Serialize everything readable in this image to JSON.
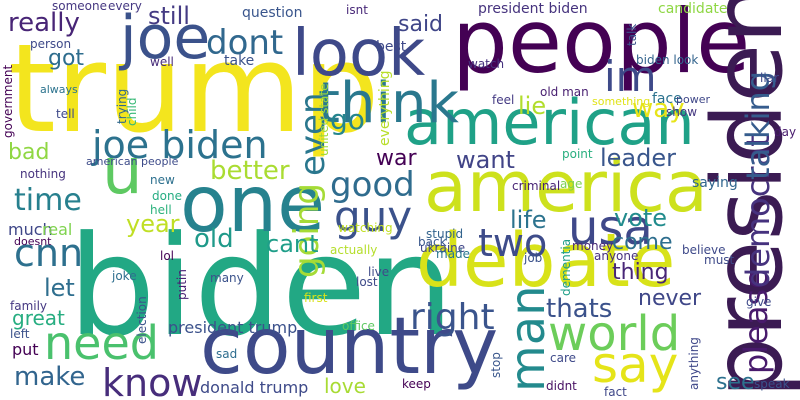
{
  "background_color": "#ffffff",
  "words": [
    {
      "text": "trump",
      "color": "#f3e51e"
    },
    {
      "text": "biden",
      "color": "#22a884"
    },
    {
      "text": "people",
      "color": "#440154"
    },
    {
      "text": "president",
      "color": "#3b1b53"
    },
    {
      "text": "country",
      "color": "#3e4a89"
    },
    {
      "text": "america",
      "color": "#cde11d"
    },
    {
      "text": "american",
      "color": "#1fa187"
    },
    {
      "text": "debate",
      "color": "#d8e219"
    },
    {
      "text": "one",
      "color": "#26828e"
    },
    {
      "text": "joe",
      "color": "#3b528b"
    },
    {
      "text": "look",
      "color": "#3e4989"
    },
    {
      "text": "think",
      "color": "#2a788e"
    },
    {
      "text": "im",
      "color": "#3e4a89"
    },
    {
      "text": "joe biden",
      "color": "#2c728e"
    },
    {
      "text": "u",
      "color": "#5ec962"
    },
    {
      "text": "dont",
      "color": "#31688e"
    },
    {
      "text": "guy",
      "color": "#3b528b"
    },
    {
      "text": "usa",
      "color": "#3f4889"
    },
    {
      "text": "world",
      "color": "#6ccd5a"
    },
    {
      "text": "need",
      "color": "#4ac16d"
    },
    {
      "text": "say",
      "color": "#e5e419"
    },
    {
      "text": "man",
      "color": "#238a8d"
    },
    {
      "text": "know",
      "color": "#472d7b"
    },
    {
      "text": "cnn",
      "color": "#2d708e"
    },
    {
      "text": "good",
      "color": "#2f6c8e"
    },
    {
      "text": "time",
      "color": "#27808e"
    },
    {
      "text": "right",
      "color": "#3a548c"
    },
    {
      "text": "two",
      "color": "#3e4c8a"
    },
    {
      "text": "please",
      "color": "#481a6c"
    },
    {
      "text": "democrat",
      "color": "#46327e"
    },
    {
      "text": "talking",
      "color": "#365c8d"
    },
    {
      "text": "going",
      "color": "#a5db36"
    },
    {
      "text": "better",
      "color": "#aadc32"
    },
    {
      "text": "even",
      "color": "#2a778e"
    },
    {
      "text": "still",
      "color": "#443a83"
    },
    {
      "text": "go",
      "color": "#25858e"
    },
    {
      "text": "really",
      "color": "#482576"
    },
    {
      "text": "got",
      "color": "#2e6d8e"
    },
    {
      "text": "year",
      "color": "#c0df25"
    },
    {
      "text": "want",
      "color": "#414487"
    },
    {
      "text": "war",
      "color": "#440154"
    },
    {
      "text": "leader",
      "color": "#39568c"
    },
    {
      "text": "lie",
      "color": "#b2dd2d"
    },
    {
      "text": "way",
      "color": "#e7e419"
    },
    {
      "text": "said",
      "color": "#404688"
    },
    {
      "text": "vote",
      "color": "#228c8d"
    },
    {
      "text": "come",
      "color": "#2e6e8e"
    },
    {
      "text": "thing",
      "color": "#482677"
    },
    {
      "text": "never",
      "color": "#3f4788"
    },
    {
      "text": "life",
      "color": "#2c738e"
    },
    {
      "text": "thats",
      "color": "#3b528b"
    },
    {
      "text": "old",
      "color": "#1f9a8a"
    },
    {
      "text": "cant",
      "color": "#1f9e89"
    },
    {
      "text": "let",
      "color": "#2e6e8e"
    },
    {
      "text": "make",
      "color": "#32658e"
    },
    {
      "text": "love",
      "color": "#a8db34"
    },
    {
      "text": "see",
      "color": "#2c718e"
    },
    {
      "text": "bad",
      "color": "#90d743"
    },
    {
      "text": "president trump",
      "color": "#3b518b"
    },
    {
      "text": "donald trump",
      "color": "#3e4a89"
    },
    {
      "text": "great",
      "color": "#27ad81"
    },
    {
      "text": "put",
      "color": "#440154"
    },
    {
      "text": "much",
      "color": "#3f4788"
    },
    {
      "text": "real",
      "color": "#7fd34e"
    },
    {
      "text": "president biden",
      "color": "#46337e"
    },
    {
      "text": "candidate",
      "color": "#8fd744"
    },
    {
      "text": "question",
      "color": "#39558c"
    },
    {
      "text": "someone",
      "color": "#453781"
    },
    {
      "text": "every",
      "color": "#453882"
    },
    {
      "text": "isnt",
      "color": "#482878"
    },
    {
      "text": "best",
      "color": "#3e4989"
    },
    {
      "text": "watch",
      "color": "#46327e"
    },
    {
      "text": "take",
      "color": "#3b528b"
    },
    {
      "text": "well",
      "color": "#472c7a"
    },
    {
      "text": "person",
      "color": "#3e4989"
    },
    {
      "text": "feel",
      "color": "#443a83"
    },
    {
      "text": "old man",
      "color": "#481f70"
    },
    {
      "text": "biden look",
      "color": "#33638d"
    },
    {
      "text": "face",
      "color": "#2c728e"
    },
    {
      "text": "power",
      "color": "#3f4788"
    },
    {
      "text": "show",
      "color": "#453781"
    },
    {
      "text": "day",
      "color": "#481b6d"
    },
    {
      "text": "saying",
      "color": "#31668e"
    },
    {
      "text": "believe",
      "color": "#3e4989"
    },
    {
      "text": "point",
      "color": "#29af7f"
    },
    {
      "text": "age",
      "color": "#7ad151"
    },
    {
      "text": "criminal",
      "color": "#482475"
    },
    {
      "text": "back",
      "color": "#38588c"
    },
    {
      "text": "stupid",
      "color": "#33638d"
    },
    {
      "text": "ukraine",
      "color": "#404688"
    },
    {
      "text": "made",
      "color": "#2a768e"
    },
    {
      "text": "job",
      "color": "#3b528b"
    },
    {
      "text": "money",
      "color": "#482878"
    },
    {
      "text": "anyone",
      "color": "#46307e"
    },
    {
      "text": "must",
      "color": "#3e4a89"
    },
    {
      "text": "give",
      "color": "#3e4a89"
    },
    {
      "text": "speak",
      "color": "#3b528b"
    },
    {
      "text": "care",
      "color": "#3e4989"
    },
    {
      "text": "didnt",
      "color": "#471063"
    },
    {
      "text": "fact",
      "color": "#3f4788"
    },
    {
      "text": "keep",
      "color": "#440154"
    },
    {
      "text": "lost",
      "color": "#3e4a89"
    },
    {
      "text": "live",
      "color": "#3e4a89"
    },
    {
      "text": "office",
      "color": "#5ec962"
    },
    {
      "text": "first",
      "color": "#d8e219"
    },
    {
      "text": "actually",
      "color": "#b5de2b"
    },
    {
      "text": "watching",
      "color": "#c2df23"
    },
    {
      "text": "done",
      "color": "#25ac82"
    },
    {
      "text": "hell",
      "color": "#2db27d"
    },
    {
      "text": "new",
      "color": "#2d708e"
    },
    {
      "text": "lol",
      "color": "#440154"
    },
    {
      "text": "joke",
      "color": "#2e6e8e"
    },
    {
      "text": "many",
      "color": "#3b528b"
    },
    {
      "text": "putin",
      "color": "#482173"
    },
    {
      "text": "election",
      "color": "#3b528b"
    },
    {
      "text": "doesnt",
      "color": "#440154"
    },
    {
      "text": "nothing",
      "color": "#46337e"
    },
    {
      "text": "american people",
      "color": "#3e4c8a"
    },
    {
      "text": "government",
      "color": "#440154"
    },
    {
      "text": "always",
      "color": "#2c738e"
    },
    {
      "text": "tell",
      "color": "#3e4989"
    },
    {
      "text": "trying",
      "color": "#31688e"
    },
    {
      "text": "child",
      "color": "#38b977"
    },
    {
      "text": "united state",
      "color": "#a0da39"
    },
    {
      "text": "everything",
      "color": "#b8de29"
    },
    {
      "text": "family",
      "color": "#453882"
    },
    {
      "text": "left",
      "color": "#3b528b"
    },
    {
      "text": "sad",
      "color": "#2e6d8e"
    },
    {
      "text": "stop",
      "color": "#39568c"
    },
    {
      "text": "talk",
      "color": "#3b528b"
    },
    {
      "text": "something",
      "color": "#e0e318"
    },
    {
      "text": "anything",
      "color": "#3f4889"
    },
    {
      "text": "dementia",
      "color": "#1f9e89"
    },
    {
      "text": "liar",
      "color": "#3f4889"
    }
  ]
}
